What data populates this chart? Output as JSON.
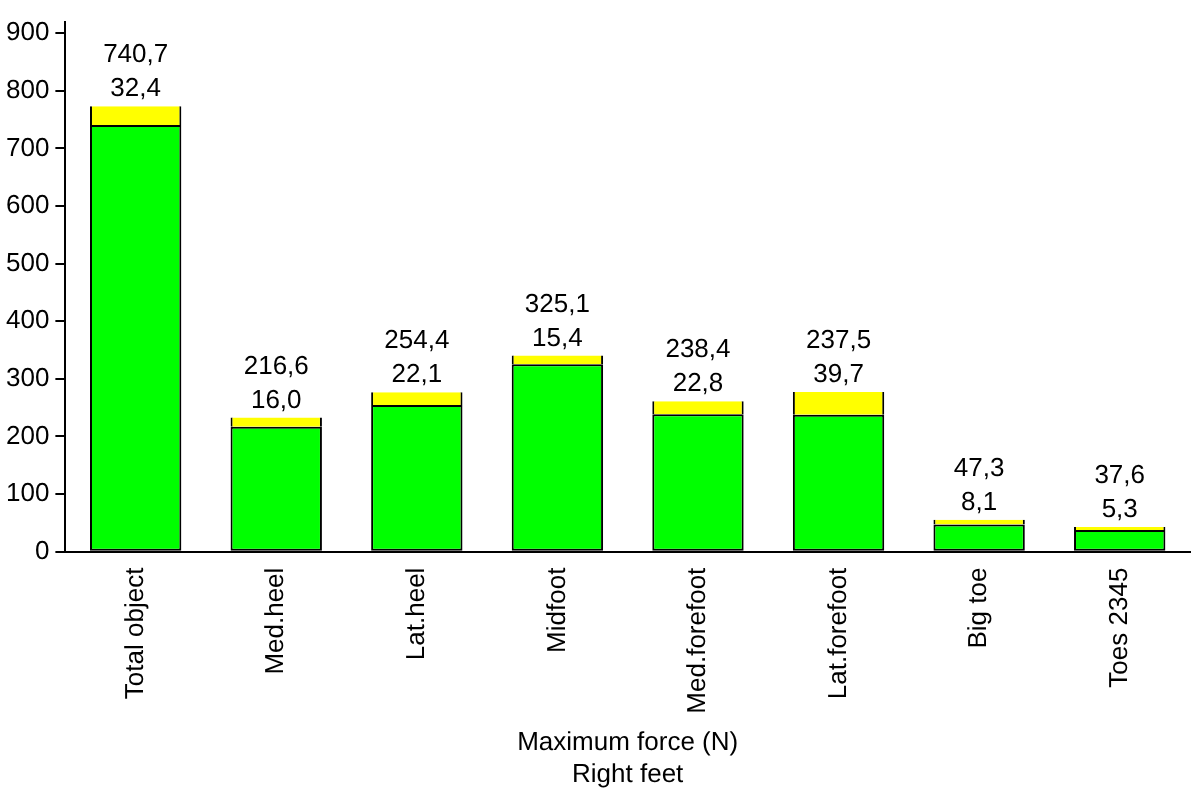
{
  "chart_data": {
    "type": "bar",
    "stacked": true,
    "categories": [
      "Total object",
      "Med.heel",
      "Lat.heel",
      "Midfoot",
      "Med.forefoot",
      "Lat.forefoot",
      "Big toe",
      "Toes 2345"
    ],
    "series": [
      {
        "color": "#00ff00",
        "values": [
          740.7,
          216.6,
          254.4,
          325.1,
          238.4,
          237.5,
          47.3,
          37.6
        ],
        "value_labels": [
          "740,7",
          "216,6",
          "254,4",
          "325,1",
          "238,4",
          "237,5",
          "47,3",
          "37,6"
        ]
      },
      {
        "color": "#ffff00",
        "values": [
          32.4,
          16.0,
          22.1,
          15.4,
          22.8,
          39.7,
          8.1,
          5.3
        ],
        "value_labels": [
          "32,4",
          "16,0",
          "22,1",
          "15,4",
          "22,8",
          "39,7",
          "8,1",
          "5,3"
        ]
      }
    ],
    "ylim": [
      0,
      920
    ],
    "yticks": [
      0,
      100,
      200,
      300,
      400,
      500,
      600,
      700,
      800,
      900
    ],
    "grid": false,
    "legend": false,
    "xlabel": "Maximum force (N)",
    "annotations": [
      "Right feet"
    ]
  }
}
